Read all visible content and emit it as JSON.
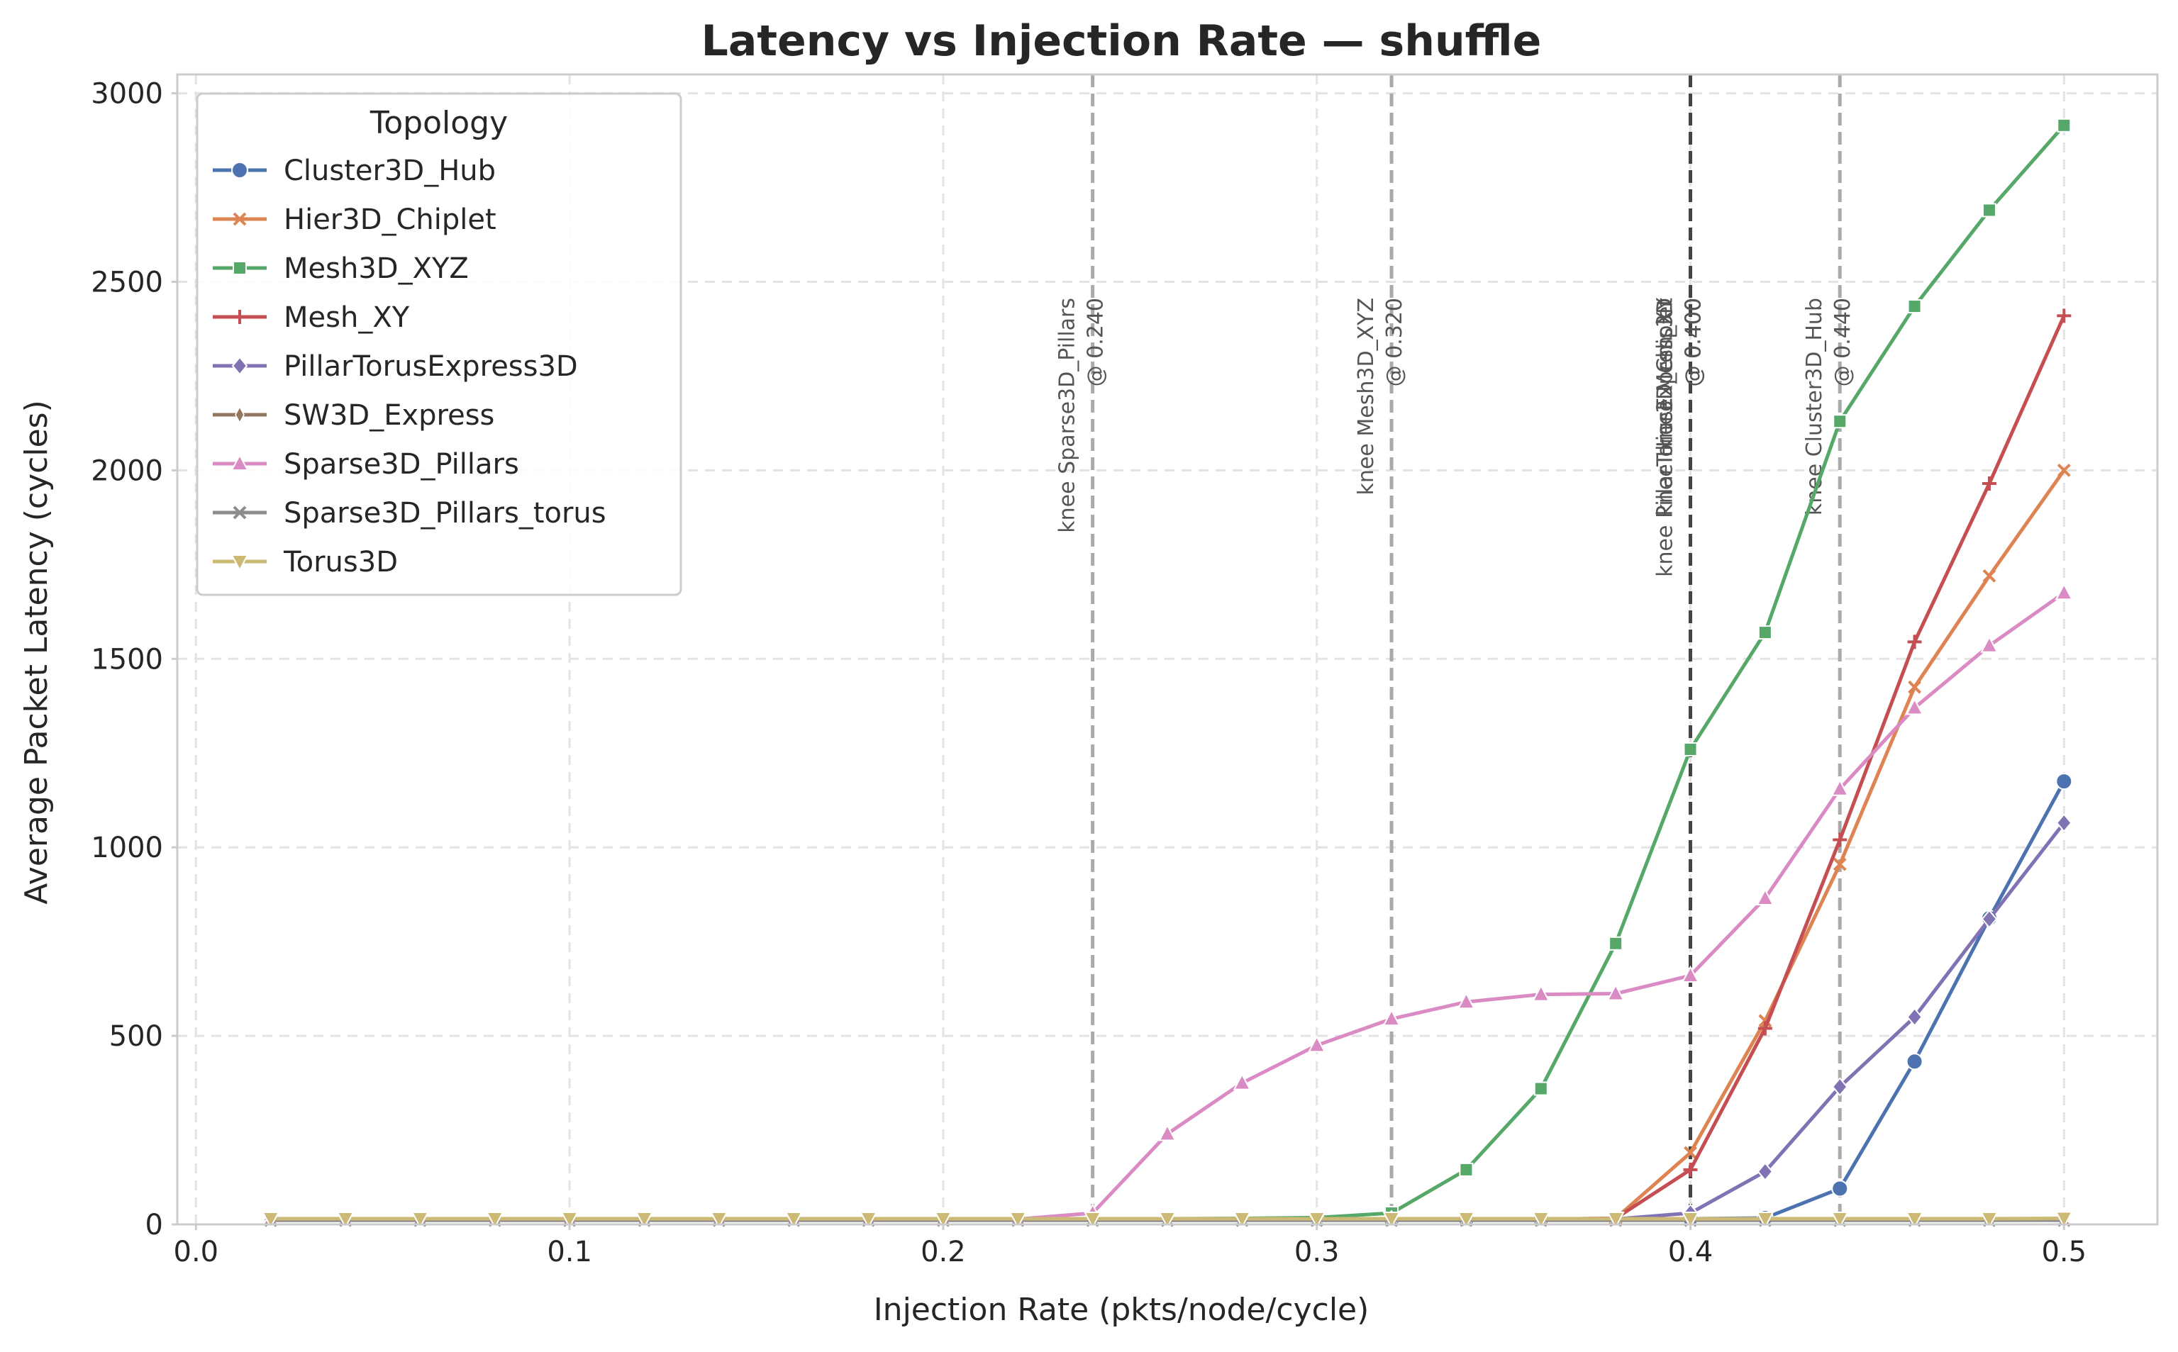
{
  "chart_data": {
    "type": "line",
    "title": "Latency vs Injection Rate — shuffle",
    "xlabel": "Injection Rate (pkts/node/cycle)",
    "ylabel": "Average Packet Latency (cycles)",
    "xlim": [
      -0.005,
      0.525
    ],
    "ylim": [
      0,
      3050
    ],
    "xticks": [
      0.0,
      0.1,
      0.2,
      0.3,
      0.4,
      0.5
    ],
    "xtick_labels": [
      "0.0",
      "0.1",
      "0.2",
      "0.3",
      "0.4",
      "0.5"
    ],
    "yticks": [
      0,
      500,
      1000,
      1500,
      2000,
      2500,
      3000
    ],
    "ytick_labels": [
      "0",
      "500",
      "1000",
      "1500",
      "2000",
      "2500",
      "3000"
    ],
    "grid": true,
    "legend": {
      "title": "Topology",
      "placement": "top-left"
    },
    "x": [
      0.02,
      0.04,
      0.06,
      0.08,
      0.1,
      0.12,
      0.14,
      0.16,
      0.18,
      0.2,
      0.22,
      0.24,
      0.26,
      0.28,
      0.3,
      0.32,
      0.34,
      0.36,
      0.38,
      0.4,
      0.42,
      0.44,
      0.46,
      0.48,
      0.5
    ],
    "series": [
      {
        "name": "Cluster3D_Hub",
        "color": "#4c72b0",
        "marker": "circle",
        "values": [
          12,
          12,
          12,
          12,
          12,
          12,
          12,
          12,
          12,
          12,
          12,
          13,
          13,
          13,
          13,
          13,
          13,
          13,
          14,
          15,
          17,
          95,
          432,
          812,
          1175
        ]
      },
      {
        "name": "Hier3D_Chiplet",
        "color": "#dd8452",
        "marker": "x",
        "values": [
          12,
          12,
          12,
          12,
          12,
          12,
          12,
          12,
          12,
          12,
          12,
          13,
          13,
          13,
          13,
          13,
          13,
          14,
          16,
          190,
          540,
          955,
          1425,
          1720,
          2000
        ]
      },
      {
        "name": "Mesh3D_XYZ",
        "color": "#55a868",
        "marker": "square",
        "values": [
          12,
          12,
          12,
          12,
          12,
          12,
          12,
          12,
          12,
          12,
          12,
          14,
          15,
          16,
          18,
          30,
          145,
          360,
          745,
          1260,
          1570,
          2130,
          2435,
          2690,
          2915
        ]
      },
      {
        "name": "Mesh_XY",
        "color": "#c44e52",
        "marker": "plus",
        "values": [
          12,
          12,
          12,
          12,
          12,
          12,
          12,
          12,
          12,
          12,
          12,
          13,
          13,
          13,
          13,
          13,
          13,
          14,
          16,
          145,
          520,
          1020,
          1545,
          1965,
          2410
        ]
      },
      {
        "name": "PillarTorusExpress3D",
        "color": "#8172b3",
        "marker": "diamond",
        "values": [
          12,
          12,
          12,
          12,
          12,
          12,
          12,
          12,
          12,
          12,
          12,
          12,
          12,
          12,
          13,
          13,
          13,
          13,
          14,
          30,
          140,
          365,
          550,
          810,
          1065
        ]
      },
      {
        "name": "SW3D_Express",
        "color": "#937860",
        "marker": "thin-diamond",
        "values": [
          11,
          11,
          11,
          11,
          11,
          11,
          11,
          11,
          11,
          11,
          11,
          11,
          11,
          11,
          11,
          11,
          11,
          11,
          11,
          11,
          11,
          11,
          11,
          11,
          12
        ]
      },
      {
        "name": "Sparse3D_Pillars",
        "color": "#da8bc3",
        "marker": "triangle-up",
        "values": [
          13,
          13,
          13,
          13,
          13,
          13,
          13,
          13,
          13,
          13,
          14,
          30,
          240,
          375,
          475,
          545,
          590,
          610,
          612,
          660,
          865,
          1155,
          1370,
          1535,
          1675
        ]
      },
      {
        "name": "Sparse3D_Pillars_torus",
        "color": "#8c8c8c",
        "marker": "x",
        "values": [
          11,
          11,
          11,
          11,
          11,
          11,
          11,
          11,
          11,
          11,
          11,
          11,
          11,
          11,
          11,
          11,
          11,
          11,
          11,
          11,
          11,
          11,
          11,
          11,
          11
        ]
      },
      {
        "name": "Torus3D",
        "color": "#ccb974",
        "marker": "triangle-down",
        "values": [
          15,
          15,
          15,
          15,
          15,
          15,
          15,
          15,
          15,
          15,
          15,
          15,
          15,
          15,
          15,
          15,
          15,
          15,
          15,
          15,
          15,
          15,
          15,
          15,
          16
        ]
      }
    ],
    "knees": [
      {
        "x": 0.24,
        "label": "knee Sparse3D_Pillars\n@ 0.240",
        "dark": false
      },
      {
        "x": 0.32,
        "label": "knee Mesh3D_XYZ\n@ 0.320",
        "dark": false
      },
      {
        "x": 0.4,
        "label": "knee Hier3D_Chiplet\n@ 0.400",
        "dark": true
      },
      {
        "x": 0.4,
        "label": "knee Mesh_XY\n@ 0.400",
        "dark": true
      },
      {
        "x": 0.4,
        "label": "knee PillarTorusExpress3D\n@ 0.400",
        "dark": true
      },
      {
        "x": 0.44,
        "label": "knee Cluster3D_Hub\n@ 0.440",
        "dark": false
      }
    ]
  }
}
